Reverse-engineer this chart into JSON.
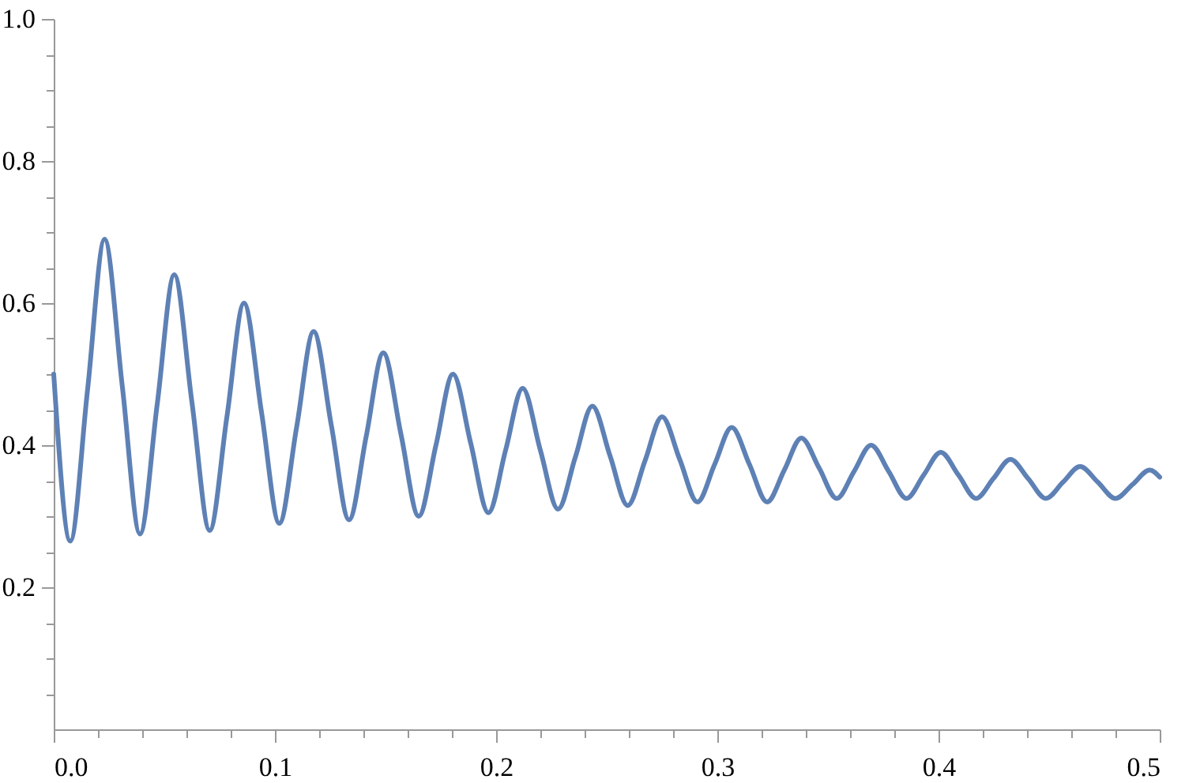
{
  "chart_data": {
    "type": "line",
    "x": [
      0,
      0.0075,
      0.0153,
      0.023,
      0.031,
      0.039,
      0.0468,
      0.0545,
      0.0625,
      0.0705,
      0.0783,
      0.086,
      0.094,
      0.102,
      0.1098,
      0.1175,
      0.1255,
      0.1335,
      0.1413,
      0.149,
      0.157,
      0.165,
      0.1728,
      0.1805,
      0.1885,
      0.1965,
      0.2043,
      0.212,
      0.22,
      0.228,
      0.2358,
      0.2435,
      0.2515,
      0.2595,
      0.2673,
      0.275,
      0.283,
      0.291,
      0.2988,
      0.3065,
      0.3145,
      0.3225,
      0.3303,
      0.338,
      0.346,
      0.354,
      0.3618,
      0.3695,
      0.3775,
      0.3855,
      0.3933,
      0.401,
      0.409,
      0.417,
      0.4248,
      0.4325,
      0.4405,
      0.4485,
      0.4563,
      0.464,
      0.472,
      0.48,
      0.4878,
      0.4955,
      0.5
    ],
    "series": [
      {
        "color": "#5e81b5",
        "values": [
          0.5,
          0.265,
          0.478,
          0.69,
          0.483,
          0.275,
          0.458,
          0.64,
          0.46,
          0.28,
          0.44,
          0.6,
          0.445,
          0.29,
          0.425,
          0.56,
          0.428,
          0.295,
          0.413,
          0.53,
          0.415,
          0.3,
          0.4,
          0.5,
          0.403,
          0.305,
          0.393,
          0.48,
          0.393,
          0.31,
          0.383,
          0.455,
          0.385,
          0.315,
          0.378,
          0.44,
          0.38,
          0.32,
          0.373,
          0.425,
          0.373,
          0.32,
          0.365,
          0.41,
          0.368,
          0.325,
          0.363,
          0.4,
          0.363,
          0.325,
          0.358,
          0.39,
          0.358,
          0.325,
          0.353,
          0.38,
          0.353,
          0.325,
          0.348,
          0.37,
          0.348,
          0.325,
          0.345,
          0.365,
          0.355
        ]
      }
    ],
    "xlim": [
      0,
      0.5
    ],
    "xticks": [
      {
        "value": 0,
        "label": "0.0"
      },
      {
        "value": 0.02,
        "label": null
      },
      {
        "value": 0.04,
        "label": null
      },
      {
        "value": 0.06,
        "label": null
      },
      {
        "value": 0.08,
        "label": null
      },
      0.1,
      {
        "value": 0.12,
        "label": null
      },
      {
        "value": 0.14,
        "label": null
      },
      {
        "value": 0.16,
        "label": null
      },
      {
        "value": 0.18,
        "label": null
      },
      0.2,
      {
        "value": 0.22,
        "label": null
      },
      {
        "value": 0.24,
        "label": null
      },
      {
        "value": 0.26,
        "label": null
      },
      {
        "value": 0.28,
        "label": null
      },
      0.3,
      {
        "value": 0.32,
        "label": null
      },
      {
        "value": 0.34,
        "label": null
      },
      {
        "value": 0.36,
        "label": null
      },
      {
        "value": 0.38,
        "label": null
      },
      0.4,
      {
        "value": 0.42,
        "label": null
      },
      {
        "value": 0.44,
        "label": null
      },
      {
        "value": 0.46,
        "label": null
      },
      {
        "value": 0.48,
        "label": null
      },
      0.5
    ],
    "ylim": [
      0,
      1
    ],
    "yticks": [
      {
        "value": 0.05,
        "label": null
      },
      {
        "value": 0.1,
        "label": null
      },
      {
        "value": 0.15,
        "label": null
      },
      0.2,
      {
        "value": 0.25,
        "label": null
      },
      {
        "value": 0.3,
        "label": null
      },
      {
        "value": 0.35,
        "label": null
      },
      0.4,
      {
        "value": 0.45,
        "label": null
      },
      {
        "value": 0.5,
        "label": null
      },
      {
        "value": 0.55,
        "label": null
      },
      0.6,
      {
        "value": 0.65,
        "label": null
      },
      {
        "value": 0.7,
        "label": null
      },
      {
        "value": 0.75,
        "label": null
      },
      0.8,
      {
        "value": 0.85,
        "label": null
      },
      {
        "value": 0.9,
        "label": null
      },
      {
        "value": 0.95,
        "label": null
      },
      {
        "value": 1,
        "label": "1.0"
      }
    ],
    "grid": false,
    "line_style": "solid",
    "marker": "none"
  }
}
